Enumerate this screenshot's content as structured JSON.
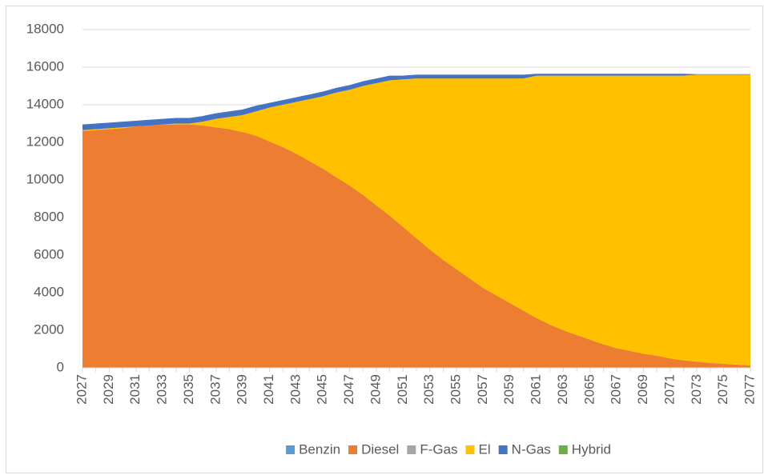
{
  "chart_data": {
    "type": "stacked_area",
    "categories": [
      "2027",
      null,
      "2029",
      null,
      "2031",
      null,
      "2033",
      null,
      "2035",
      null,
      "2037",
      null,
      "2039",
      null,
      "2041",
      null,
      "2043",
      null,
      "2045",
      null,
      "2047",
      null,
      "2049",
      null,
      "2051",
      null,
      "2053",
      null,
      "2055",
      null,
      "2057",
      null,
      "2059",
      null,
      "2061",
      null,
      "2063",
      null,
      "2065",
      null,
      "2067",
      null,
      "2069",
      null,
      "2071",
      null,
      "2073",
      null,
      "2075",
      null,
      "2077"
    ],
    "series": [
      {
        "name": "Benzin",
        "color": "#5b9bd5",
        "values": [
          0,
          0,
          0,
          0,
          0,
          0,
          0,
          0,
          0,
          0,
          0,
          0,
          0,
          0,
          0,
          0,
          0,
          0,
          0,
          0,
          0,
          0,
          0,
          0,
          0,
          0,
          0,
          0,
          0,
          0,
          0,
          0,
          0,
          0,
          0,
          0,
          0,
          0,
          0,
          0,
          0,
          0,
          0,
          0,
          0,
          0,
          0,
          0,
          0,
          0,
          0
        ]
      },
      {
        "name": "Diesel",
        "color": "#ed7d31",
        "values": [
          12600,
          12650,
          12700,
          12750,
          12850,
          12900,
          12950,
          12950,
          12950,
          12900,
          12800,
          12700,
          12550,
          12350,
          12050,
          11750,
          11400,
          11000,
          10600,
          10150,
          9700,
          9200,
          8650,
          8100,
          7500,
          6900,
          6300,
          5750,
          5250,
          4750,
          4250,
          3850,
          3450,
          3050,
          2650,
          2300,
          2000,
          1750,
          1500,
          1250,
          1050,
          900,
          750,
          650,
          500,
          400,
          330,
          260,
          220,
          170,
          130
        ]
      },
      {
        "name": "F-Gas",
        "color": "#a5a5a5",
        "values": [
          0,
          0,
          0,
          0,
          0,
          0,
          0,
          0,
          0,
          0,
          0,
          0,
          0,
          0,
          0,
          0,
          0,
          0,
          0,
          0,
          0,
          0,
          0,
          0,
          0,
          0,
          0,
          0,
          0,
          0,
          0,
          0,
          0,
          0,
          0,
          0,
          0,
          0,
          0,
          0,
          0,
          0,
          0,
          0,
          0,
          0,
          0,
          0,
          0,
          0,
          0
        ]
      },
      {
        "name": "El",
        "color": "#ffc000",
        "values": [
          50,
          50,
          50,
          50,
          0,
          0,
          0,
          50,
          50,
          200,
          450,
          650,
          900,
          1300,
          1800,
          2250,
          2750,
          3300,
          3850,
          4500,
          5100,
          5800,
          6500,
          7200,
          7850,
          8500,
          9100,
          9650,
          10150,
          10650,
          11150,
          11550,
          11950,
          12350,
          12900,
          13250,
          13550,
          13800,
          14050,
          14300,
          14500,
          14650,
          14800,
          14900,
          15050,
          15150,
          15270,
          15340,
          15380,
          15430,
          15470
        ]
      },
      {
        "name": "N-Gas",
        "color": "#4472c4",
        "values": [
          300,
          300,
          300,
          300,
          300,
          300,
          300,
          300,
          300,
          300,
          300,
          300,
          300,
          300,
          250,
          250,
          250,
          250,
          250,
          250,
          250,
          250,
          250,
          250,
          200,
          200,
          200,
          200,
          200,
          200,
          200,
          200,
          200,
          200,
          100,
          100,
          100,
          100,
          100,
          100,
          100,
          100,
          100,
          100,
          100,
          100,
          30,
          30,
          30,
          30,
          30
        ]
      },
      {
        "name": "Hybrid",
        "color": "#70ad47",
        "values": [
          0,
          0,
          0,
          0,
          0,
          0,
          0,
          0,
          0,
          0,
          0,
          0,
          0,
          0,
          0,
          0,
          0,
          0,
          0,
          0,
          0,
          0,
          0,
          0,
          0,
          0,
          0,
          0,
          0,
          0,
          0,
          0,
          0,
          0,
          0,
          0,
          0,
          0,
          0,
          0,
          0,
          0,
          0,
          0,
          0,
          0,
          0,
          0,
          0,
          0,
          0
        ]
      }
    ],
    "ylim": [
      0,
      18000
    ],
    "yticks": [
      0,
      2000,
      4000,
      6000,
      8000,
      10000,
      12000,
      14000,
      16000,
      18000
    ],
    "grid": true,
    "legend": "bottom"
  }
}
